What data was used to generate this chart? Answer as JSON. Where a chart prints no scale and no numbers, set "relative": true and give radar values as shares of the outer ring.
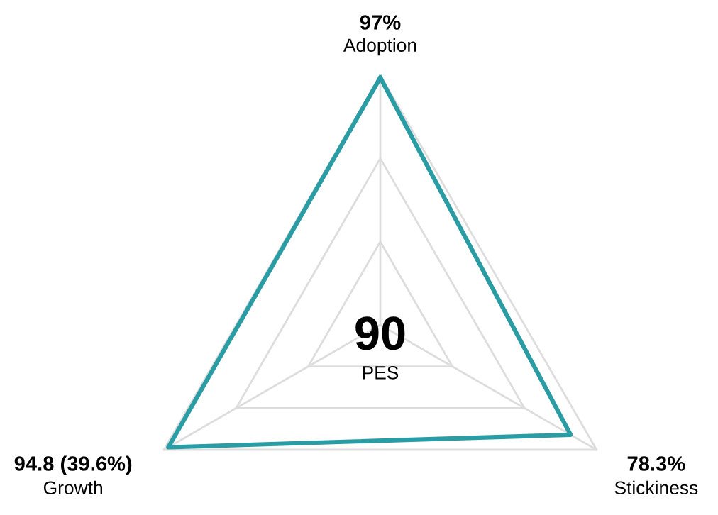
{
  "chart_data": {
    "type": "radar",
    "categories": [
      "Adoption",
      "Stickiness",
      "Growth"
    ],
    "relative": true,
    "series": [
      {
        "color": "#2a9ca4",
        "values": [
          0.99,
          0.88,
          0.98
        ]
      }
    ],
    "value_labels": [
      "97%",
      "78.3%",
      "94.8 (39.6%)"
    ],
    "annotations": [
      "90",
      "PES"
    ],
    "grid": true,
    "marker": "none"
  }
}
